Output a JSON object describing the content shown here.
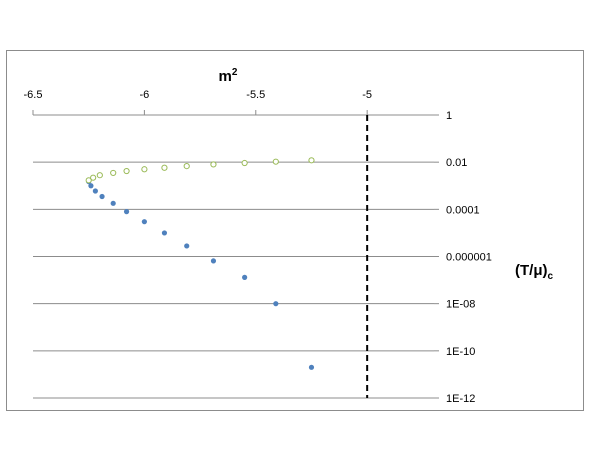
{
  "chart_data": {
    "type": "scatter",
    "xlabel": "m",
    "xlabel_sup": "2",
    "ylabel": "(T/μ)",
    "ylabel_sub": "c",
    "xlim": [
      -6.5,
      -4.7
    ],
    "x_axis_position": "top",
    "y_axis_position": "right",
    "y_scale": "log",
    "ylim": [
      1e-12,
      1
    ],
    "x_ticks": [
      {
        "value": -6.5,
        "label": "-6.5"
      },
      {
        "value": -6.0,
        "label": "-6"
      },
      {
        "value": -5.5,
        "label": "-5.5"
      },
      {
        "value": -5.0,
        "label": "-5"
      }
    ],
    "y_ticks": [
      {
        "value": 1,
        "label": "1"
      },
      {
        "value": 0.01,
        "label": "0.01"
      },
      {
        "value": 0.0001,
        "label": "0.0001"
      },
      {
        "value": 1e-06,
        "label": "0.000001"
      },
      {
        "value": 1e-08,
        "label": "1E-08"
      },
      {
        "value": 1e-10,
        "label": "1E-10"
      },
      {
        "value": 1e-12,
        "label": "1E-12"
      }
    ],
    "grid": "horizontal",
    "legend": "none",
    "reference_line": {
      "x": -5.0,
      "style": "dashed",
      "color": "#000000"
    },
    "series": [
      {
        "marker": "filled-circle",
        "color": "#4f81bd",
        "points": [
          {
            "x": -6.25,
            "y": 0.0015
          },
          {
            "x": -6.24,
            "y": 0.001
          },
          {
            "x": -6.22,
            "y": 0.0006
          },
          {
            "x": -6.19,
            "y": 0.00035
          },
          {
            "x": -6.14,
            "y": 0.00018
          },
          {
            "x": -6.08,
            "y": 8e-05
          },
          {
            "x": -6.0,
            "y": 3e-05
          },
          {
            "x": -5.91,
            "y": 1e-05
          },
          {
            "x": -5.81,
            "y": 2.8e-06
          },
          {
            "x": -5.69,
            "y": 6.5e-07
          },
          {
            "x": -5.55,
            "y": 1.3e-07
          },
          {
            "x": -5.41,
            "y": 1e-08
          },
          {
            "x": -5.25,
            "y": 2e-11
          }
        ]
      },
      {
        "marker": "open-circle",
        "color": "#9bbb59",
        "points": [
          {
            "x": -6.25,
            "y": 0.0017
          },
          {
            "x": -6.23,
            "y": 0.0022
          },
          {
            "x": -6.2,
            "y": 0.0028
          },
          {
            "x": -6.14,
            "y": 0.0035
          },
          {
            "x": -6.08,
            "y": 0.0042
          },
          {
            "x": -6.0,
            "y": 0.005
          },
          {
            "x": -5.91,
            "y": 0.0058
          },
          {
            "x": -5.81,
            "y": 0.0068
          },
          {
            "x": -5.69,
            "y": 0.008
          },
          {
            "x": -5.55,
            "y": 0.0092
          },
          {
            "x": -5.41,
            "y": 0.0105
          },
          {
            "x": -5.25,
            "y": 0.012
          }
        ]
      }
    ]
  }
}
